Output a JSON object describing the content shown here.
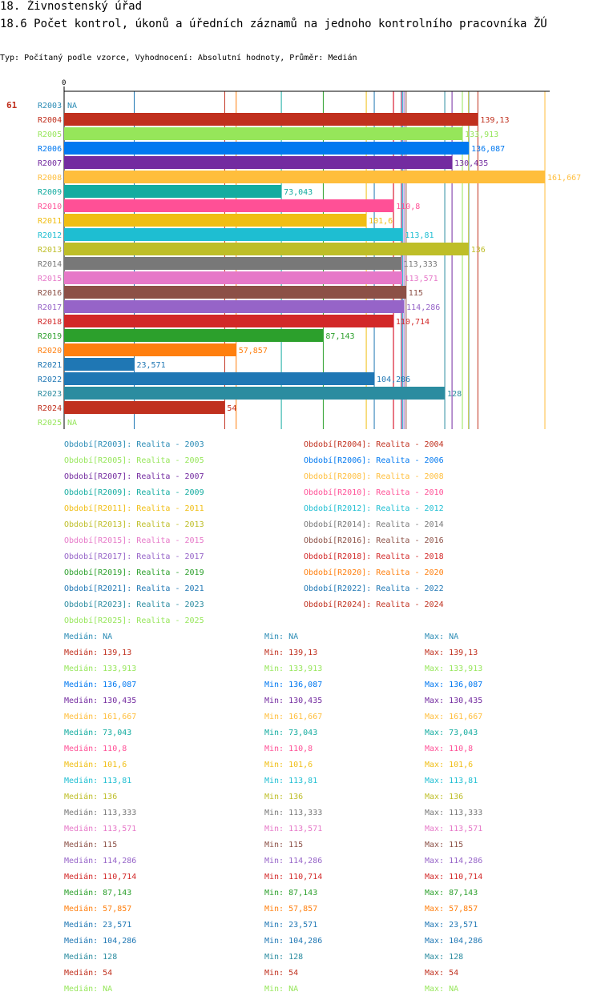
{
  "header": {
    "title": "18. Živnostenský úřad",
    "subtitle_main": "18.6 Počet kontrol, úkonů a úředních záznamů na jednoho kontrolního pracovníka ŽÚ",
    "type_line": "Typ: Počítaný podle vzorce, Vyhodnocení: Absolutní hodnoty, Průměr: Medián"
  },
  "chart_data": {
    "type": "bar",
    "orientation": "horizontal",
    "id_label": "61",
    "axis_zero_label": "0",
    "xlim": [
      0,
      161.667
    ],
    "grid": false,
    "categories": [
      "R2003",
      "R2004",
      "R2005",
      "R2006",
      "R2007",
      "R2008",
      "R2009",
      "R2010",
      "R2011",
      "R2012",
      "R2013",
      "R2014",
      "R2015",
      "R2016",
      "R2017",
      "R2018",
      "R2019",
      "R2020",
      "R2021",
      "R2022",
      "R2023",
      "R2024",
      "R2025"
    ],
    "values": [
      null,
      139.13,
      133.913,
      136.087,
      130.435,
      161.667,
      73.043,
      110.8,
      101.6,
      113.81,
      136,
      113.333,
      113.571,
      115,
      114.286,
      110.714,
      87.143,
      57.857,
      23.571,
      104.286,
      128,
      54,
      null
    ],
    "value_labels": [
      "NA",
      "139,13",
      "133,913",
      "136,087",
      "130,435",
      "161,667",
      "73,043",
      "110,8",
      "101,6",
      "113,81",
      "136",
      "113,333",
      "113,571",
      "115",
      "114,286",
      "110,714",
      "87,143",
      "57,857",
      "23,571",
      "104,286",
      "128",
      "54",
      "NA"
    ],
    "colors": [
      "#2B8CB5",
      "#C0301E",
      "#96E65A",
      "#0078F0",
      "#732BA0",
      "#FFBE3C",
      "#14ACA0",
      "#FF5096",
      "#F0BE14",
      "#1EBED2",
      "#BEBE28",
      "#787878",
      "#E678C8",
      "#8C5046",
      "#9664C8",
      "#D22828",
      "#2CA02C",
      "#FF7F0E",
      "#1F77B4",
      "#1F77B4",
      "#2B8CA0",
      "#C0301E",
      "#96E65A"
    ],
    "legend": [
      "Období[R2003]: Realita - 2003",
      "Období[R2004]: Realita - 2004",
      "Období[R2005]: Realita - 2005",
      "Období[R2006]: Realita - 2006",
      "Období[R2007]: Realita - 2007",
      "Období[R2008]: Realita - 2008",
      "Období[R2009]: Realita - 2009",
      "Období[R2010]: Realita - 2010",
      "Období[R2011]: Realita - 2011",
      "Období[R2012]: Realita - 2012",
      "Období[R2013]: Realita - 2013",
      "Období[R2014]: Realita - 2014",
      "Období[R2015]: Realita - 2015",
      "Období[R2016]: Realita - 2016",
      "Období[R2017]: Realita - 2017",
      "Období[R2018]: Realita - 2018",
      "Období[R2019]: Realita - 2019",
      "Období[R2020]: Realita - 2020",
      "Období[R2021]: Realita - 2021",
      "Období[R2022]: Realita - 2022",
      "Období[R2023]: Realita - 2023",
      "Období[R2024]: Realita - 2024",
      "Období[R2025]: Realita - 2025"
    ],
    "stats_labels": {
      "median": "Medián: ",
      "min": "Min: ",
      "max": "Max: "
    }
  }
}
